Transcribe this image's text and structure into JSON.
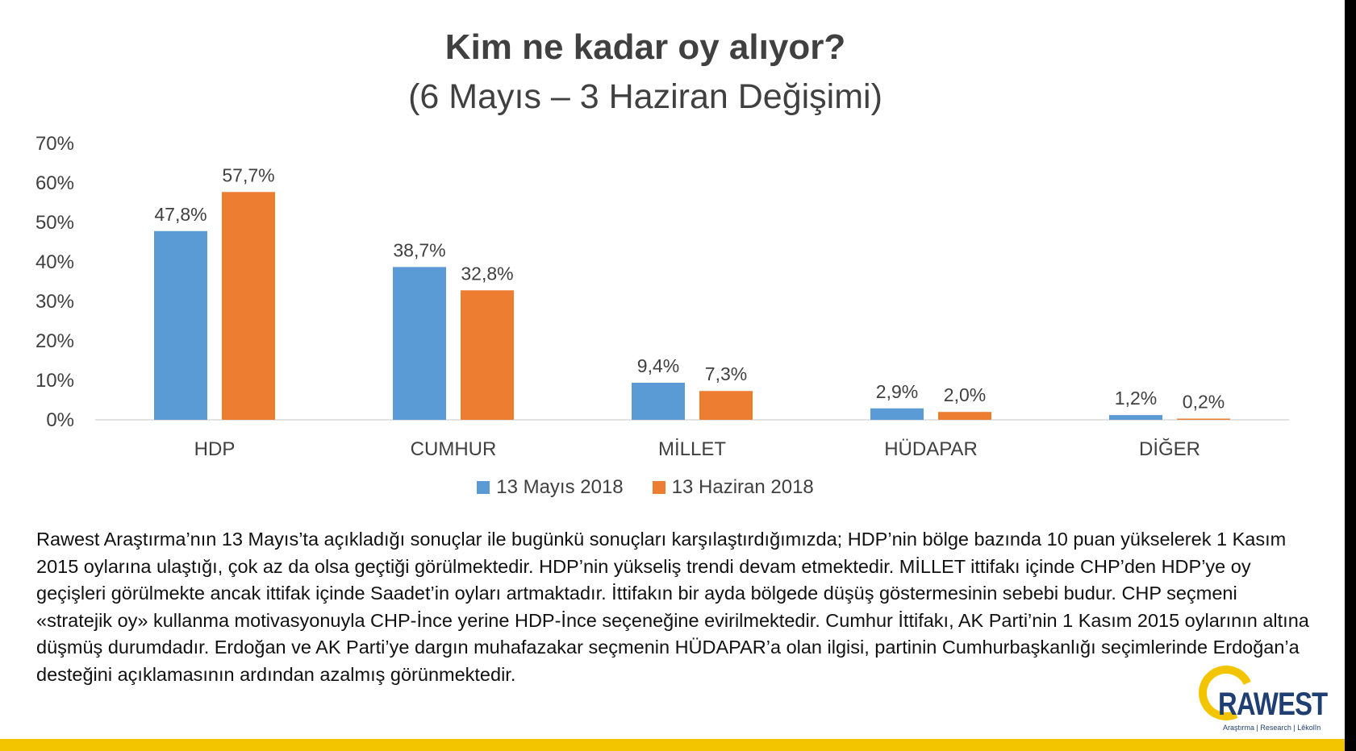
{
  "title": "Kim ne kadar oy alıyor?",
  "subtitle": "(6 Mayıs – 3 Haziran Değişimi)",
  "chart_data": {
    "type": "bar",
    "title": "Kim ne kadar oy alıyor?",
    "subtitle": "(6 Mayıs – 3 Haziran Değişimi)",
    "categories": [
      "HDP",
      "CUMHUR",
      "MİLLET",
      "HÜDAPAR",
      "DİĞER"
    ],
    "series": [
      {
        "name": "13 Mayıs 2018",
        "color": "#5b9bd5",
        "values": [
          47.8,
          38.7,
          9.4,
          2.9,
          1.2
        ],
        "labels": [
          "47,8%",
          "38,7%",
          "9,4%",
          "2,9%",
          "1,2%"
        ]
      },
      {
        "name": "13 Haziran 2018",
        "color": "#ed7d31",
        "values": [
          57.7,
          32.8,
          7.3,
          2.0,
          0.2
        ],
        "labels": [
          "57,7%",
          "32,8%",
          "7,3%",
          "2,0%",
          "0,2%"
        ]
      }
    ],
    "ylim": [
      0,
      70
    ],
    "yticks": [
      0,
      10,
      20,
      30,
      40,
      50,
      60,
      70
    ],
    "ytick_labels": [
      "0%",
      "10%",
      "20%",
      "30%",
      "40%",
      "50%",
      "60%",
      "70%"
    ],
    "grid": false,
    "legend_position": "bottom"
  },
  "legend": [
    {
      "label": "13 Mayıs 2018",
      "color": "#5b9bd5"
    },
    {
      "label": "13 Haziran 2018",
      "color": "#ed7d31"
    }
  ],
  "description": "Rawest Araştırma’nın 13 Mayıs’ta açıkladığı sonuçlar ile bugünkü sonuçları karşılaştırdığımızda; HDP’nin bölge bazında 10 puan yükselerek 1 Kasım 2015 oylarına ulaştığı, çok az da olsa geçtiği görülmektedir. HDP’nin yükseliş trendi devam etmektedir. MİLLET ittifakı içinde CHP’den HDP’ye oy geçişleri görülmekte ancak ittifak içinde Saadet’in oyları artmaktadır. İttifakın bir ayda bölgede düşüş göstermesinin sebebi budur. CHP seçmeni «stratejik oy» kullanma motivasyonuyla CHP-İnce yerine HDP-İnce seçeneğine evirilmektedir. Cumhur İttifakı, AK Parti’nin 1 Kasım 2015 oylarının altına düşmüş durumdadır. Erdoğan ve AK Parti’ye dargın muhafazakar seçmenin HÜDAPAR’a olan ilgisi, partinin Cumhurbaşkanlığı seçimlerinde Erdoğan’a desteğini açıklamasının ardından azalmış görünmektedir.",
  "logo": {
    "wordmark": "RAWEST",
    "tagline": "Araştırma | Research | Lêkolîn",
    "colors": {
      "ring": "#f2c500",
      "text": "#1f3f73"
    }
  },
  "accent_bar_color": "#f2c500"
}
